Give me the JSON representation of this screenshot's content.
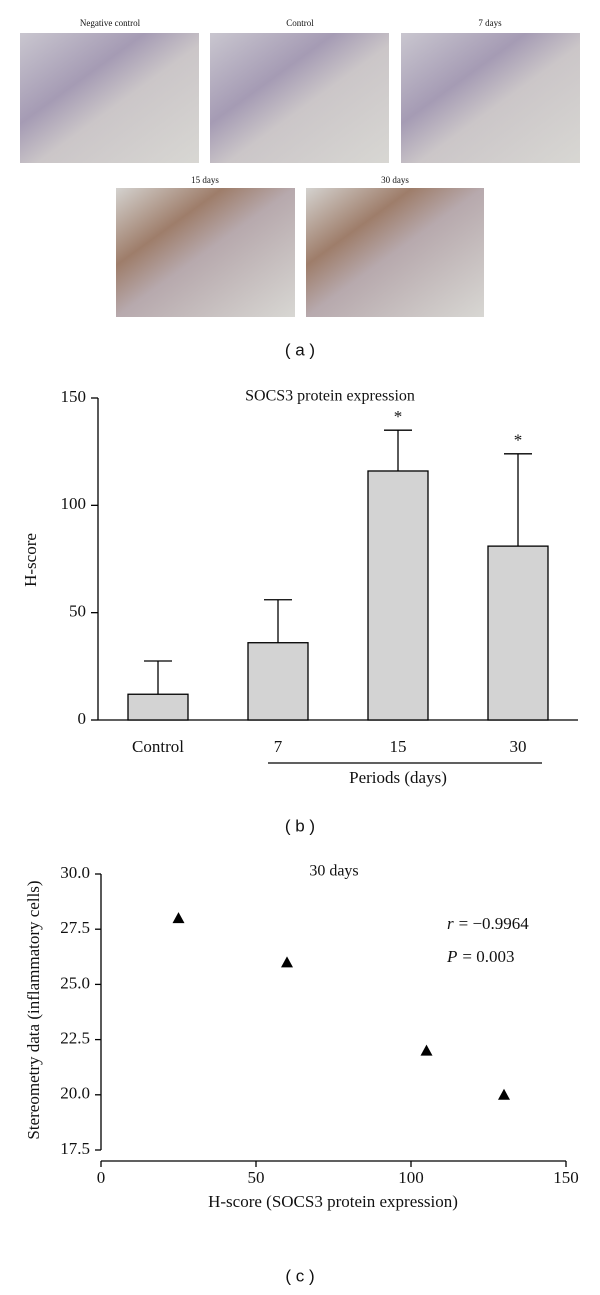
{
  "images": {
    "labels": [
      "Negative control",
      "Control",
      "7 days",
      "15 days",
      "30 days"
    ],
    "caption": "( a )"
  },
  "chart_data": [
    {
      "type": "bar",
      "title": "SOCS3 protein expression",
      "categories": [
        "Control",
        "7",
        "15",
        "30"
      ],
      "values": [
        12,
        36,
        116,
        81
      ],
      "errors": [
        15.5,
        20,
        19,
        43
      ],
      "significance": [
        null,
        null,
        "*",
        "*"
      ],
      "color": "#d3d3d3",
      "xlabel": "Periods (days)",
      "ylabel": "H-score",
      "ylim": [
        0,
        150
      ],
      "yticks": [
        0,
        50,
        100,
        150
      ],
      "caption": "( b )"
    },
    {
      "type": "scatter",
      "title": "30 days",
      "x": [
        25,
        60,
        105,
        130
      ],
      "values": [
        28,
        26,
        22,
        20
      ],
      "color": "#000000",
      "xlabel": "H-score (SOCS3 protein expression)",
      "ylabel": "Stereometry data (inflammatory cells)",
      "xlim": [
        0,
        150
      ],
      "xticks": [
        0,
        50,
        100,
        150
      ],
      "ylim": [
        17.5,
        30
      ],
      "yticks": [
        17.5,
        {
          "value": 20,
          "label": "20.0"
        },
        22.5,
        {
          "value": 25,
          "label": "25.0"
        },
        27.5,
        {
          "value": 30,
          "label": "30.0"
        }
      ],
      "stats": [
        {
          "symbol": "r",
          "text": "= −0.9964"
        },
        {
          "symbol": "P",
          "text": "= 0.003"
        }
      ],
      "caption": "( c )"
    }
  ]
}
